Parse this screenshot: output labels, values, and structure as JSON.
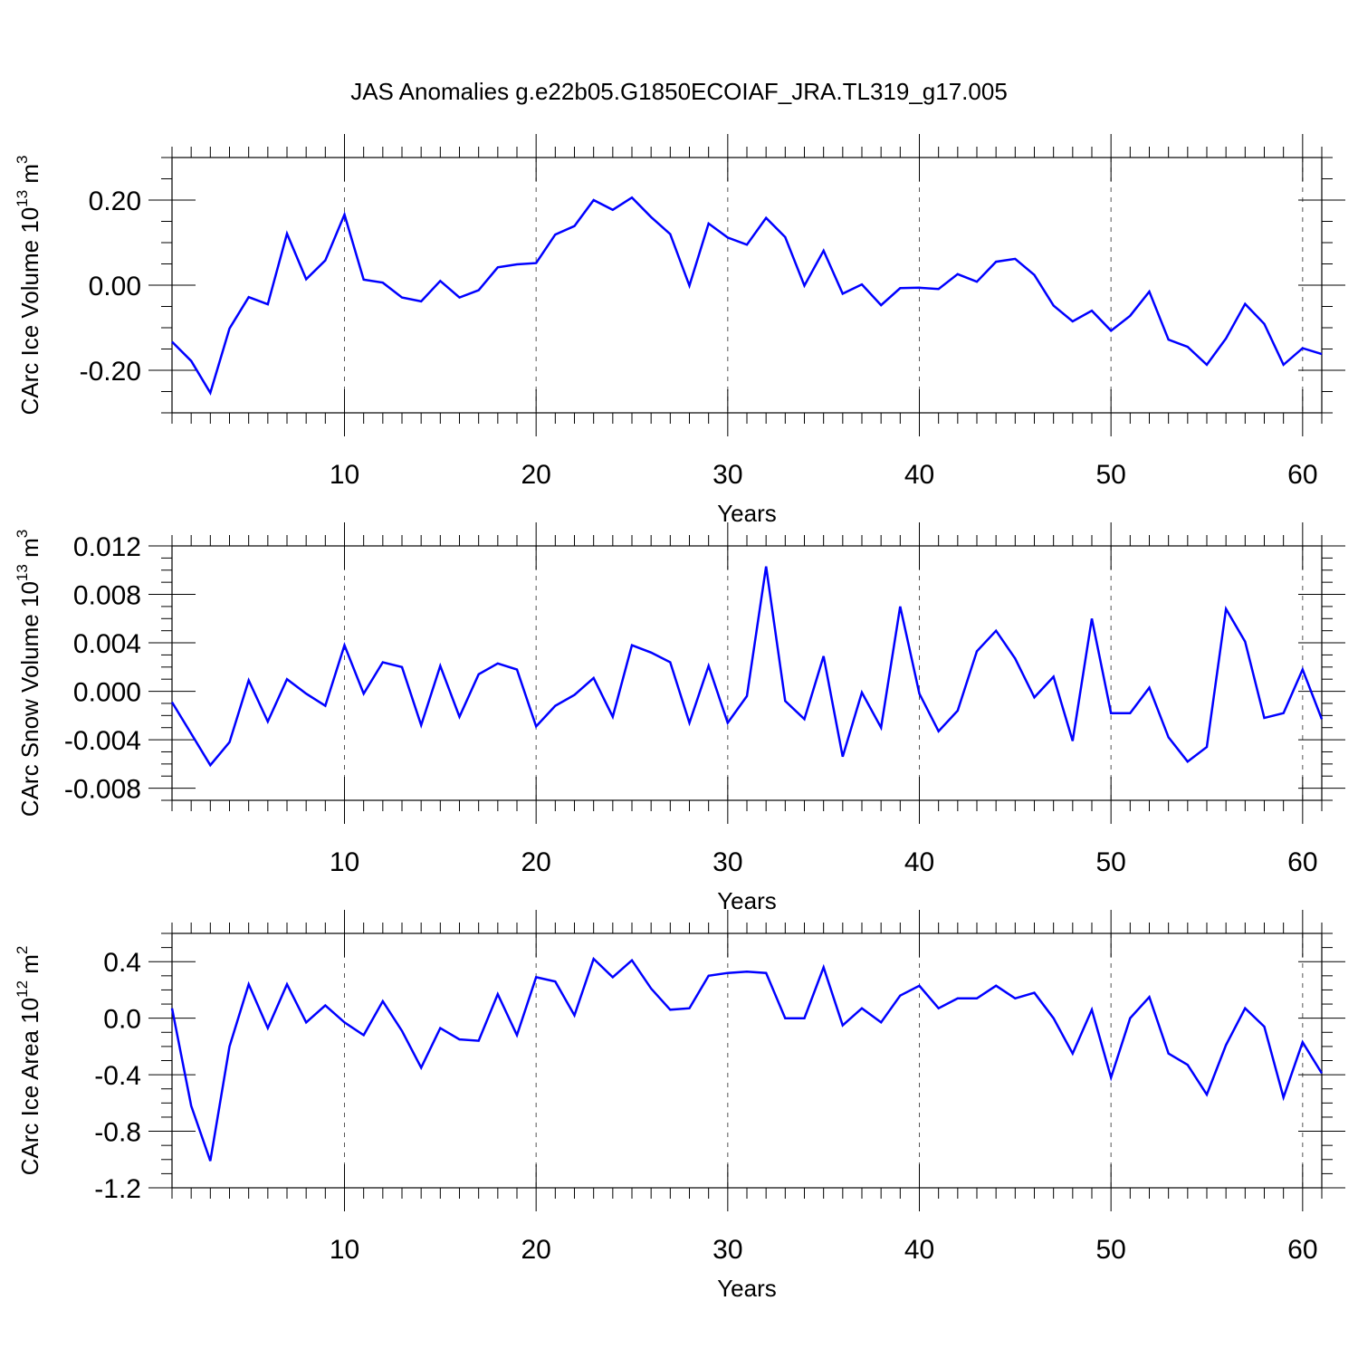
{
  "title": "JAS Anomalies g.e22b05.G1850ECOIAF_JRA.TL319_g17.005",
  "colors": {
    "line": "#0000ff",
    "axis": "#000000",
    "grid": "#555555"
  },
  "chart_data": [
    {
      "type": "line",
      "ylabel_main": "CArc Ice Volume 10",
      "ylabel_exp": "13",
      "ylabel_unit": " m",
      "ylabel_unit_exp": "3",
      "xlabel": "Years",
      "xlim": [
        1,
        61
      ],
      "ylim": [
        -0.3,
        0.3
      ],
      "x_ticks": [
        10,
        20,
        30,
        40,
        50,
        60
      ],
      "x_tick_labels": [
        "10",
        "20",
        "30",
        "40",
        "50",
        "60"
      ],
      "y_ticks": [
        -0.2,
        0.0,
        0.2
      ],
      "y_tick_labels": [
        "-0.20",
        "0.00",
        "0.20"
      ],
      "y_minor_step": 0.05,
      "x": [
        1,
        2,
        3,
        4,
        5,
        6,
        7,
        8,
        9,
        10,
        11,
        12,
        13,
        14,
        15,
        16,
        17,
        18,
        19,
        20,
        21,
        22,
        23,
        24,
        25,
        26,
        27,
        28,
        29,
        30,
        31,
        32,
        33,
        34,
        35,
        36,
        37,
        38,
        39,
        40,
        41,
        42,
        43,
        44,
        45,
        46,
        47,
        48,
        49,
        50,
        51,
        52,
        53,
        54,
        55,
        56,
        57,
        58,
        59,
        60,
        61
      ],
      "values": [
        -0.133,
        -0.178,
        -0.253,
        -0.102,
        -0.028,
        -0.045,
        0.121,
        0.014,
        0.058,
        0.166,
        0.013,
        0.006,
        -0.029,
        -0.038,
        0.01,
        -0.029,
        -0.012,
        0.042,
        0.049,
        0.052,
        0.119,
        0.139,
        0.2,
        0.177,
        0.206,
        0.16,
        0.12,
        -0.001,
        0.145,
        0.112,
        0.095,
        0.158,
        0.113,
        -0.001,
        0.081,
        -0.02,
        0.002,
        -0.047,
        -0.007,
        -0.006,
        -0.009,
        0.026,
        0.008,
        0.055,
        0.062,
        0.024,
        -0.048,
        -0.085,
        -0.06,
        -0.107,
        -0.072,
        -0.015,
        -0.128,
        -0.145,
        -0.187,
        -0.125,
        -0.044,
        -0.091,
        -0.187,
        -0.148,
        -0.162
      ]
    },
    {
      "type": "line",
      "ylabel_main": "CArc Snow Volume 10",
      "ylabel_exp": "13",
      "ylabel_unit": " m",
      "ylabel_unit_exp": "3",
      "xlabel": "Years",
      "xlim": [
        1,
        61
      ],
      "ylim": [
        -0.009,
        0.012
      ],
      "x_ticks": [
        10,
        20,
        30,
        40,
        50,
        60
      ],
      "x_tick_labels": [
        "10",
        "20",
        "30",
        "40",
        "50",
        "60"
      ],
      "y_ticks": [
        -0.008,
        -0.004,
        0.0,
        0.004,
        0.008,
        0.012
      ],
      "y_tick_labels": [
        "-0.008",
        "-0.004",
        "0.000",
        "0.004",
        "0.008",
        "0.012"
      ],
      "y_minor_step": 0.001,
      "x": [
        1,
        2,
        3,
        4,
        5,
        6,
        7,
        8,
        9,
        10,
        11,
        12,
        13,
        14,
        15,
        16,
        17,
        18,
        19,
        20,
        21,
        22,
        23,
        24,
        25,
        26,
        27,
        28,
        29,
        30,
        31,
        32,
        33,
        34,
        35,
        36,
        37,
        38,
        39,
        40,
        41,
        42,
        43,
        44,
        45,
        46,
        47,
        48,
        49,
        50,
        51,
        52,
        53,
        54,
        55,
        56,
        57,
        58,
        59,
        60,
        61
      ],
      "values": [
        -0.0009,
        -0.0035,
        -0.0061,
        -0.0042,
        0.0009,
        -0.0025,
        0.001,
        -0.0002,
        -0.0012,
        0.0038,
        -0.0002,
        0.0024,
        0.002,
        -0.0028,
        0.0021,
        -0.0021,
        0.0014,
        0.0023,
        0.0018,
        -0.0029,
        -0.0012,
        -0.0003,
        0.0011,
        -0.0021,
        0.0038,
        0.0032,
        0.0024,
        -0.0026,
        0.0021,
        -0.0026,
        -0.0004,
        0.0103,
        -0.0008,
        -0.0023,
        0.0029,
        -0.0054,
        -0.0001,
        -0.003,
        0.007,
        -0.0002,
        -0.0033,
        -0.0016,
        0.0033,
        0.005,
        0.0027,
        -0.0005,
        0.0012,
        -0.0041,
        0.006,
        -0.0018,
        -0.0018,
        0.0003,
        -0.0038,
        -0.0058,
        -0.0046,
        0.0068,
        0.0041,
        -0.0022,
        -0.0018,
        0.0018,
        -0.0023
      ]
    },
    {
      "type": "line",
      "ylabel_main": "CArc Ice Area 10",
      "ylabel_exp": "12",
      "ylabel_unit": " m",
      "ylabel_unit_exp": "2",
      "xlabel": "Years",
      "xlim": [
        1,
        61
      ],
      "ylim": [
        -1.2,
        0.6
      ],
      "x_ticks": [
        10,
        20,
        30,
        40,
        50,
        60
      ],
      "x_tick_labels": [
        "10",
        "20",
        "30",
        "40",
        "50",
        "60"
      ],
      "y_ticks": [
        -1.2,
        -0.8,
        -0.4,
        0.0,
        0.4
      ],
      "y_tick_labels": [
        "-1.2",
        "-0.8",
        "-0.4",
        "0.0",
        "0.4"
      ],
      "y_minor_step": 0.1,
      "x": [
        1,
        2,
        3,
        4,
        5,
        6,
        7,
        8,
        9,
        10,
        11,
        12,
        13,
        14,
        15,
        16,
        17,
        18,
        19,
        20,
        21,
        22,
        23,
        24,
        25,
        26,
        27,
        28,
        29,
        30,
        31,
        32,
        33,
        34,
        35,
        36,
        37,
        38,
        39,
        40,
        41,
        42,
        43,
        44,
        45,
        46,
        47,
        48,
        49,
        50,
        51,
        52,
        53,
        54,
        55,
        56,
        57,
        58,
        59,
        60,
        61
      ],
      "values": [
        0.07,
        -0.62,
        -1.01,
        -0.2,
        0.24,
        -0.07,
        0.24,
        -0.03,
        0.09,
        -0.03,
        -0.12,
        0.12,
        -0.09,
        -0.35,
        -0.07,
        -0.15,
        -0.16,
        0.17,
        -0.12,
        0.29,
        0.26,
        0.02,
        0.42,
        0.29,
        0.41,
        0.21,
        0.06,
        0.07,
        0.3,
        0.32,
        0.33,
        0.32,
        0.0,
        0.0,
        0.36,
        -0.05,
        0.07,
        -0.03,
        0.16,
        0.23,
        0.07,
        0.14,
        0.14,
        0.23,
        0.14,
        0.18,
        0.0,
        -0.25,
        0.06,
        -0.42,
        0.0,
        0.15,
        -0.25,
        -0.33,
        -0.54,
        -0.19,
        0.07,
        -0.06,
        -0.56,
        -0.17,
        -0.39
      ]
    }
  ]
}
